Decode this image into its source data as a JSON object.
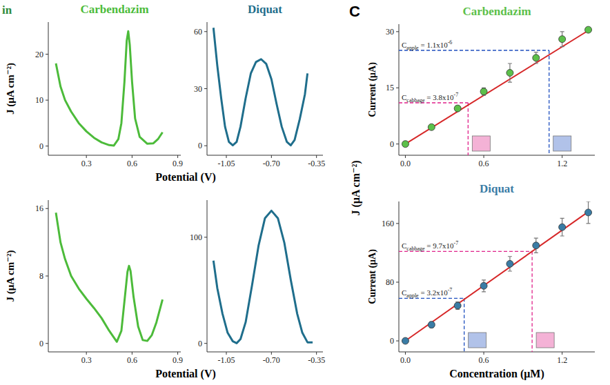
{
  "figure": {
    "fragment": "in",
    "panel_letter": "C",
    "rows": [
      {
        "x_label": "Potential (V)",
        "y_label": "J (μA cm⁻²)"
      },
      {
        "x_label": "Potential (V)",
        "y_label": "J (μA cm⁻²)"
      }
    ],
    "right_y_label": "J (μA cm⁻²)",
    "right_x_label": "Concentration (μM)"
  },
  "chart_data": [
    {
      "type": "line",
      "title": "Carbendazim",
      "color": "#4cbb3a",
      "x": [
        0.1,
        0.13,
        0.16,
        0.2,
        0.25,
        0.3,
        0.35,
        0.4,
        0.45,
        0.48,
        0.51,
        0.53,
        0.55,
        0.565,
        0.575,
        0.585,
        0.6,
        0.62,
        0.65,
        0.7,
        0.74,
        0.77,
        0.8
      ],
      "values": [
        18,
        13,
        10,
        7.5,
        5,
        3.2,
        1.8,
        0.8,
        0.2,
        0.1,
        1.5,
        5,
        14,
        23,
        25,
        22,
        14,
        6,
        2,
        0.5,
        0.6,
        1.5,
        3
      ],
      "xlim": [
        0.05,
        0.92
      ],
      "ylim": [
        -2,
        27
      ],
      "xticks": [
        0.3,
        0.6,
        0.9
      ],
      "yticks": [
        0,
        10,
        20
      ]
    },
    {
      "type": "line",
      "title": "Diquat",
      "color": "#1f6e8c",
      "x": [
        -1.15,
        -1.12,
        -1.09,
        -1.06,
        -1.03,
        -1.0,
        -0.97,
        -0.94,
        -0.9,
        -0.86,
        -0.82,
        -0.78,
        -0.74,
        -0.7,
        -0.66,
        -0.62,
        -0.58,
        -0.55,
        -0.52,
        -0.48,
        -0.44,
        -0.42
      ],
      "values": [
        62,
        42,
        25,
        10,
        2,
        0.2,
        2,
        10,
        25,
        38,
        44,
        45.5,
        43,
        35,
        22,
        10,
        2,
        0.2,
        3,
        14,
        27,
        38
      ],
      "xlim": [
        -1.2,
        -0.3
      ],
      "ylim": [
        -5,
        65
      ],
      "xticks": [
        -1.05,
        {
          "value": -0.7,
          "label": "-0.70"
        },
        -0.35
      ],
      "yticks": [
        0,
        30,
        60
      ]
    },
    {
      "type": "line",
      "color": "#4cbb3a",
      "x": [
        0.1,
        0.13,
        0.16,
        0.2,
        0.25,
        0.3,
        0.35,
        0.4,
        0.45,
        0.5,
        0.53,
        0.55,
        0.57,
        0.58,
        0.59,
        0.61,
        0.64,
        0.67,
        0.7,
        0.73,
        0.76,
        0.8
      ],
      "values": [
        15.5,
        12,
        10,
        8,
        6.5,
        5.3,
        4.2,
        3,
        1.5,
        0.2,
        1.5,
        5,
        8.5,
        9.2,
        8.6,
        5.5,
        2,
        0.4,
        0.3,
        1,
        2.5,
        5.2
      ],
      "xlim": [
        0.05,
        0.92
      ],
      "ylim": [
        -1,
        17
      ],
      "xticks": [
        0.3,
        0.6,
        0.9
      ],
      "yticks": [
        0,
        8,
        16
      ]
    },
    {
      "type": "line",
      "color": "#1f6e8c",
      "x": [
        -1.15,
        -1.12,
        -1.08,
        -1.04,
        -1.0,
        -0.97,
        -0.94,
        -0.9,
        -0.85,
        -0.8,
        -0.75,
        -0.7,
        -0.65,
        -0.6,
        -0.55,
        -0.5,
        -0.46,
        -0.42,
        -0.38
      ],
      "values": [
        78,
        52,
        28,
        10,
        2,
        0.2,
        4,
        20,
        55,
        92,
        118,
        125,
        118,
        95,
        60,
        28,
        10,
        1,
        1
      ],
      "xlim": [
        -1.2,
        -0.3
      ],
      "ylim": [
        -8,
        135
      ],
      "xticks": [
        -1.05,
        {
          "value": -0.7,
          "label": "-0.70"
        },
        -0.35
      ],
      "yticks": [
        0,
        100
      ]
    },
    {
      "type": "scatter",
      "title": "Carbendazim",
      "y_label": "Current (μA)",
      "xlim": [
        -0.05,
        1.45
      ],
      "ylim": [
        -3,
        32
      ],
      "xticks": [
        {
          "value": 0,
          "label": "0.0"
        },
        0.6,
        1.2
      ],
      "yticks": [
        0,
        15,
        30
      ],
      "series": [
        {
          "type": "scatter",
          "color": "#5cc04a",
          "x": [
            0,
            0.2,
            0.4,
            0.6,
            0.8,
            1.0,
            1.2,
            1.4
          ],
          "values": [
            0,
            4.5,
            9.5,
            14,
            19,
            23,
            28,
            30.5
          ],
          "errors": [
            0.5,
            0.5,
            0.7,
            1,
            2.5,
            1.5,
            2,
            0.5
          ]
        },
        {
          "type": "line",
          "color": "#d62728",
          "x": [
            0,
            1.4
          ],
          "values": [
            0,
            30.3
          ]
        }
      ],
      "annotations": [
        {
          "symbol": "C",
          "subscript": "apple",
          "text": " = 1.1x10",
          "exponent": "-6",
          "x": 1.1,
          "y": 25,
          "color": "#1f4fbf"
        },
        {
          "symbol": "C",
          "subscript": "cabbage",
          "text": " = 3.8x10",
          "exponent": "-7",
          "x": 0.48,
          "y": 11,
          "color": "#e0218a"
        }
      ]
    },
    {
      "type": "scatter",
      "title": "Diquat",
      "y_label": "Current (μA)",
      "xlim": [
        -0.05,
        1.45
      ],
      "ylim": [
        -15,
        190
      ],
      "xticks": [
        {
          "value": 0,
          "label": "0.0"
        },
        0.6,
        1.2
      ],
      "yticks": [
        0,
        80,
        160
      ],
      "series": [
        {
          "type": "scatter",
          "color": "#3a7ca5",
          "x": [
            0,
            0.2,
            0.4,
            0.6,
            0.8,
            1.0,
            1.2,
            1.4
          ],
          "values": [
            0,
            22,
            48,
            75,
            105,
            130,
            155,
            175
          ],
          "errors": [
            3,
            4,
            5,
            8,
            10,
            10,
            12,
            15
          ]
        },
        {
          "type": "line",
          "color": "#d62728",
          "x": [
            0,
            1.4
          ],
          "values": [
            0,
            176
          ]
        }
      ],
      "annotations": [
        {
          "symbol": "C",
          "subscript": "cabbage",
          "text": " = 9.7x10",
          "exponent": "-7",
          "x": 0.97,
          "y": 122,
          "color": "#e0218a"
        },
        {
          "symbol": "C",
          "subscript": "apple",
          "text": " = 3.2x10",
          "exponent": "-7",
          "x": 0.45,
          "y": 58,
          "color": "#1f4fbf"
        }
      ]
    }
  ]
}
